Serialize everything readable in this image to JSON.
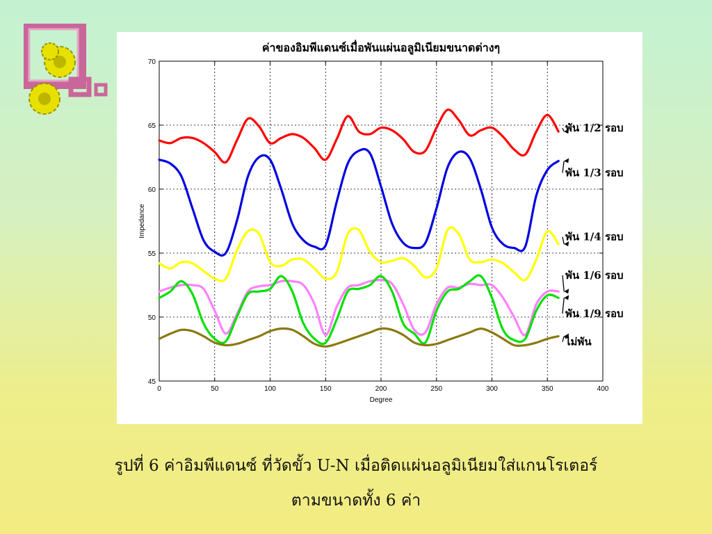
{
  "caption": {
    "line1": "รูปที่ 6  ค่าอิมพีแดนซ์ ที่วัดขั้ว U-N เมื่อติดแผ่นอลูมิเนียมใส่แกนโรเตอร์",
    "line2": "ตามขนาดทั้ง 6 ค่า"
  },
  "colors": {
    "logo_frame": "#c9679a",
    "gear": "#e8e000"
  },
  "chart_data": {
    "type": "line",
    "title": "ค่าของอิมพีแดนซ์เมื่อพันแผ่นอลูมิเนียมขนาดต่างๆ",
    "xlabel": "Degree",
    "ylabel": "Impedance",
    "xlim": [
      0,
      400
    ],
    "ylim": [
      45,
      70
    ],
    "xticks": [
      0,
      50,
      100,
      150,
      200,
      250,
      300,
      350,
      400
    ],
    "yticks": [
      45,
      50,
      55,
      60,
      65,
      70
    ],
    "grid": true,
    "x": [
      0,
      10,
      20,
      30,
      40,
      50,
      60,
      70,
      80,
      90,
      100,
      110,
      120,
      130,
      140,
      150,
      160,
      170,
      180,
      190,
      200,
      210,
      220,
      230,
      240,
      250,
      260,
      270,
      280,
      290,
      300,
      310,
      320,
      330,
      340,
      350,
      360
    ],
    "series": [
      {
        "name": "พัน 1/2 รอบ",
        "color": "#ff0000",
        "values": [
          63.8,
          63.6,
          64.0,
          64.0,
          63.6,
          62.9,
          62.1,
          63.8,
          65.5,
          64.9,
          63.6,
          64.0,
          64.3,
          64.0,
          63.2,
          62.3,
          63.9,
          65.7,
          64.5,
          64.3,
          64.8,
          64.6,
          63.9,
          62.9,
          63.0,
          64.8,
          66.2,
          65.4,
          64.2,
          64.6,
          64.8,
          64.1,
          63.1,
          62.7,
          64.5,
          65.8,
          64.5
        ]
      },
      {
        "name": "พัน 1/3 รอบ",
        "color": "#0000e0",
        "values": [
          62.3,
          62.0,
          61.0,
          58.5,
          56.0,
          55.1,
          55.0,
          57.5,
          61.0,
          62.5,
          62.3,
          60.0,
          57.3,
          56.0,
          55.5,
          55.6,
          59.0,
          62.0,
          63.0,
          62.8,
          60.2,
          57.3,
          55.8,
          55.4,
          55.8,
          58.5,
          61.7,
          62.9,
          62.4,
          60.0,
          57.0,
          55.7,
          55.4,
          55.5,
          59.5,
          61.5,
          62.2
        ]
      },
      {
        "name": "พัน 1/4 รอบ",
        "color": "#ffff00",
        "values": [
          54.2,
          53.8,
          54.3,
          54.2,
          53.6,
          53.0,
          53.0,
          55.2,
          56.7,
          56.5,
          54.3,
          54.0,
          54.5,
          54.5,
          53.8,
          53.0,
          53.5,
          56.5,
          56.8,
          55.1,
          54.3,
          54.4,
          54.6,
          54.0,
          53.1,
          53.8,
          56.8,
          56.5,
          54.5,
          54.3,
          54.5,
          54.2,
          53.5,
          52.9,
          54.5,
          56.7,
          55.7
        ]
      },
      {
        "name": "พัน 1/6 รอบ",
        "color": "#ff80ff",
        "values": [
          52.0,
          52.3,
          52.5,
          52.5,
          52.2,
          50.5,
          48.7,
          50.2,
          52.0,
          52.4,
          52.5,
          52.8,
          52.8,
          52.5,
          51.0,
          48.6,
          50.8,
          52.3,
          52.5,
          52.8,
          52.9,
          52.6,
          51.0,
          49.0,
          48.8,
          51.0,
          52.3,
          52.3,
          52.6,
          52.5,
          52.5,
          51.5,
          50.0,
          48.6,
          51.0,
          52.0,
          52.0
        ]
      },
      {
        "name": "พัน 1/9 รอบ",
        "color": "#00e000",
        "values": [
          51.5,
          52.0,
          52.8,
          51.8,
          49.5,
          48.3,
          48.1,
          50.0,
          51.8,
          52.0,
          52.2,
          53.2,
          52.0,
          49.5,
          48.3,
          48.0,
          49.8,
          52.0,
          52.2,
          52.5,
          53.2,
          52.0,
          49.5,
          48.7,
          48.0,
          50.5,
          52.0,
          52.2,
          52.8,
          53.2,
          51.5,
          49.0,
          48.2,
          48.3,
          50.5,
          51.7,
          51.5
        ]
      },
      {
        "name": "ไม่พัน",
        "color": "#8a7a10",
        "values": [
          48.3,
          48.7,
          49.0,
          48.9,
          48.5,
          48.0,
          47.8,
          47.9,
          48.2,
          48.5,
          48.9,
          49.1,
          49.0,
          48.5,
          47.9,
          47.7,
          47.9,
          48.2,
          48.5,
          48.8,
          49.1,
          49.0,
          48.6,
          48.0,
          47.8,
          47.9,
          48.2,
          48.5,
          48.8,
          49.1,
          48.8,
          48.3,
          47.8,
          47.8,
          48.0,
          48.3,
          48.5
        ]
      }
    ]
  }
}
